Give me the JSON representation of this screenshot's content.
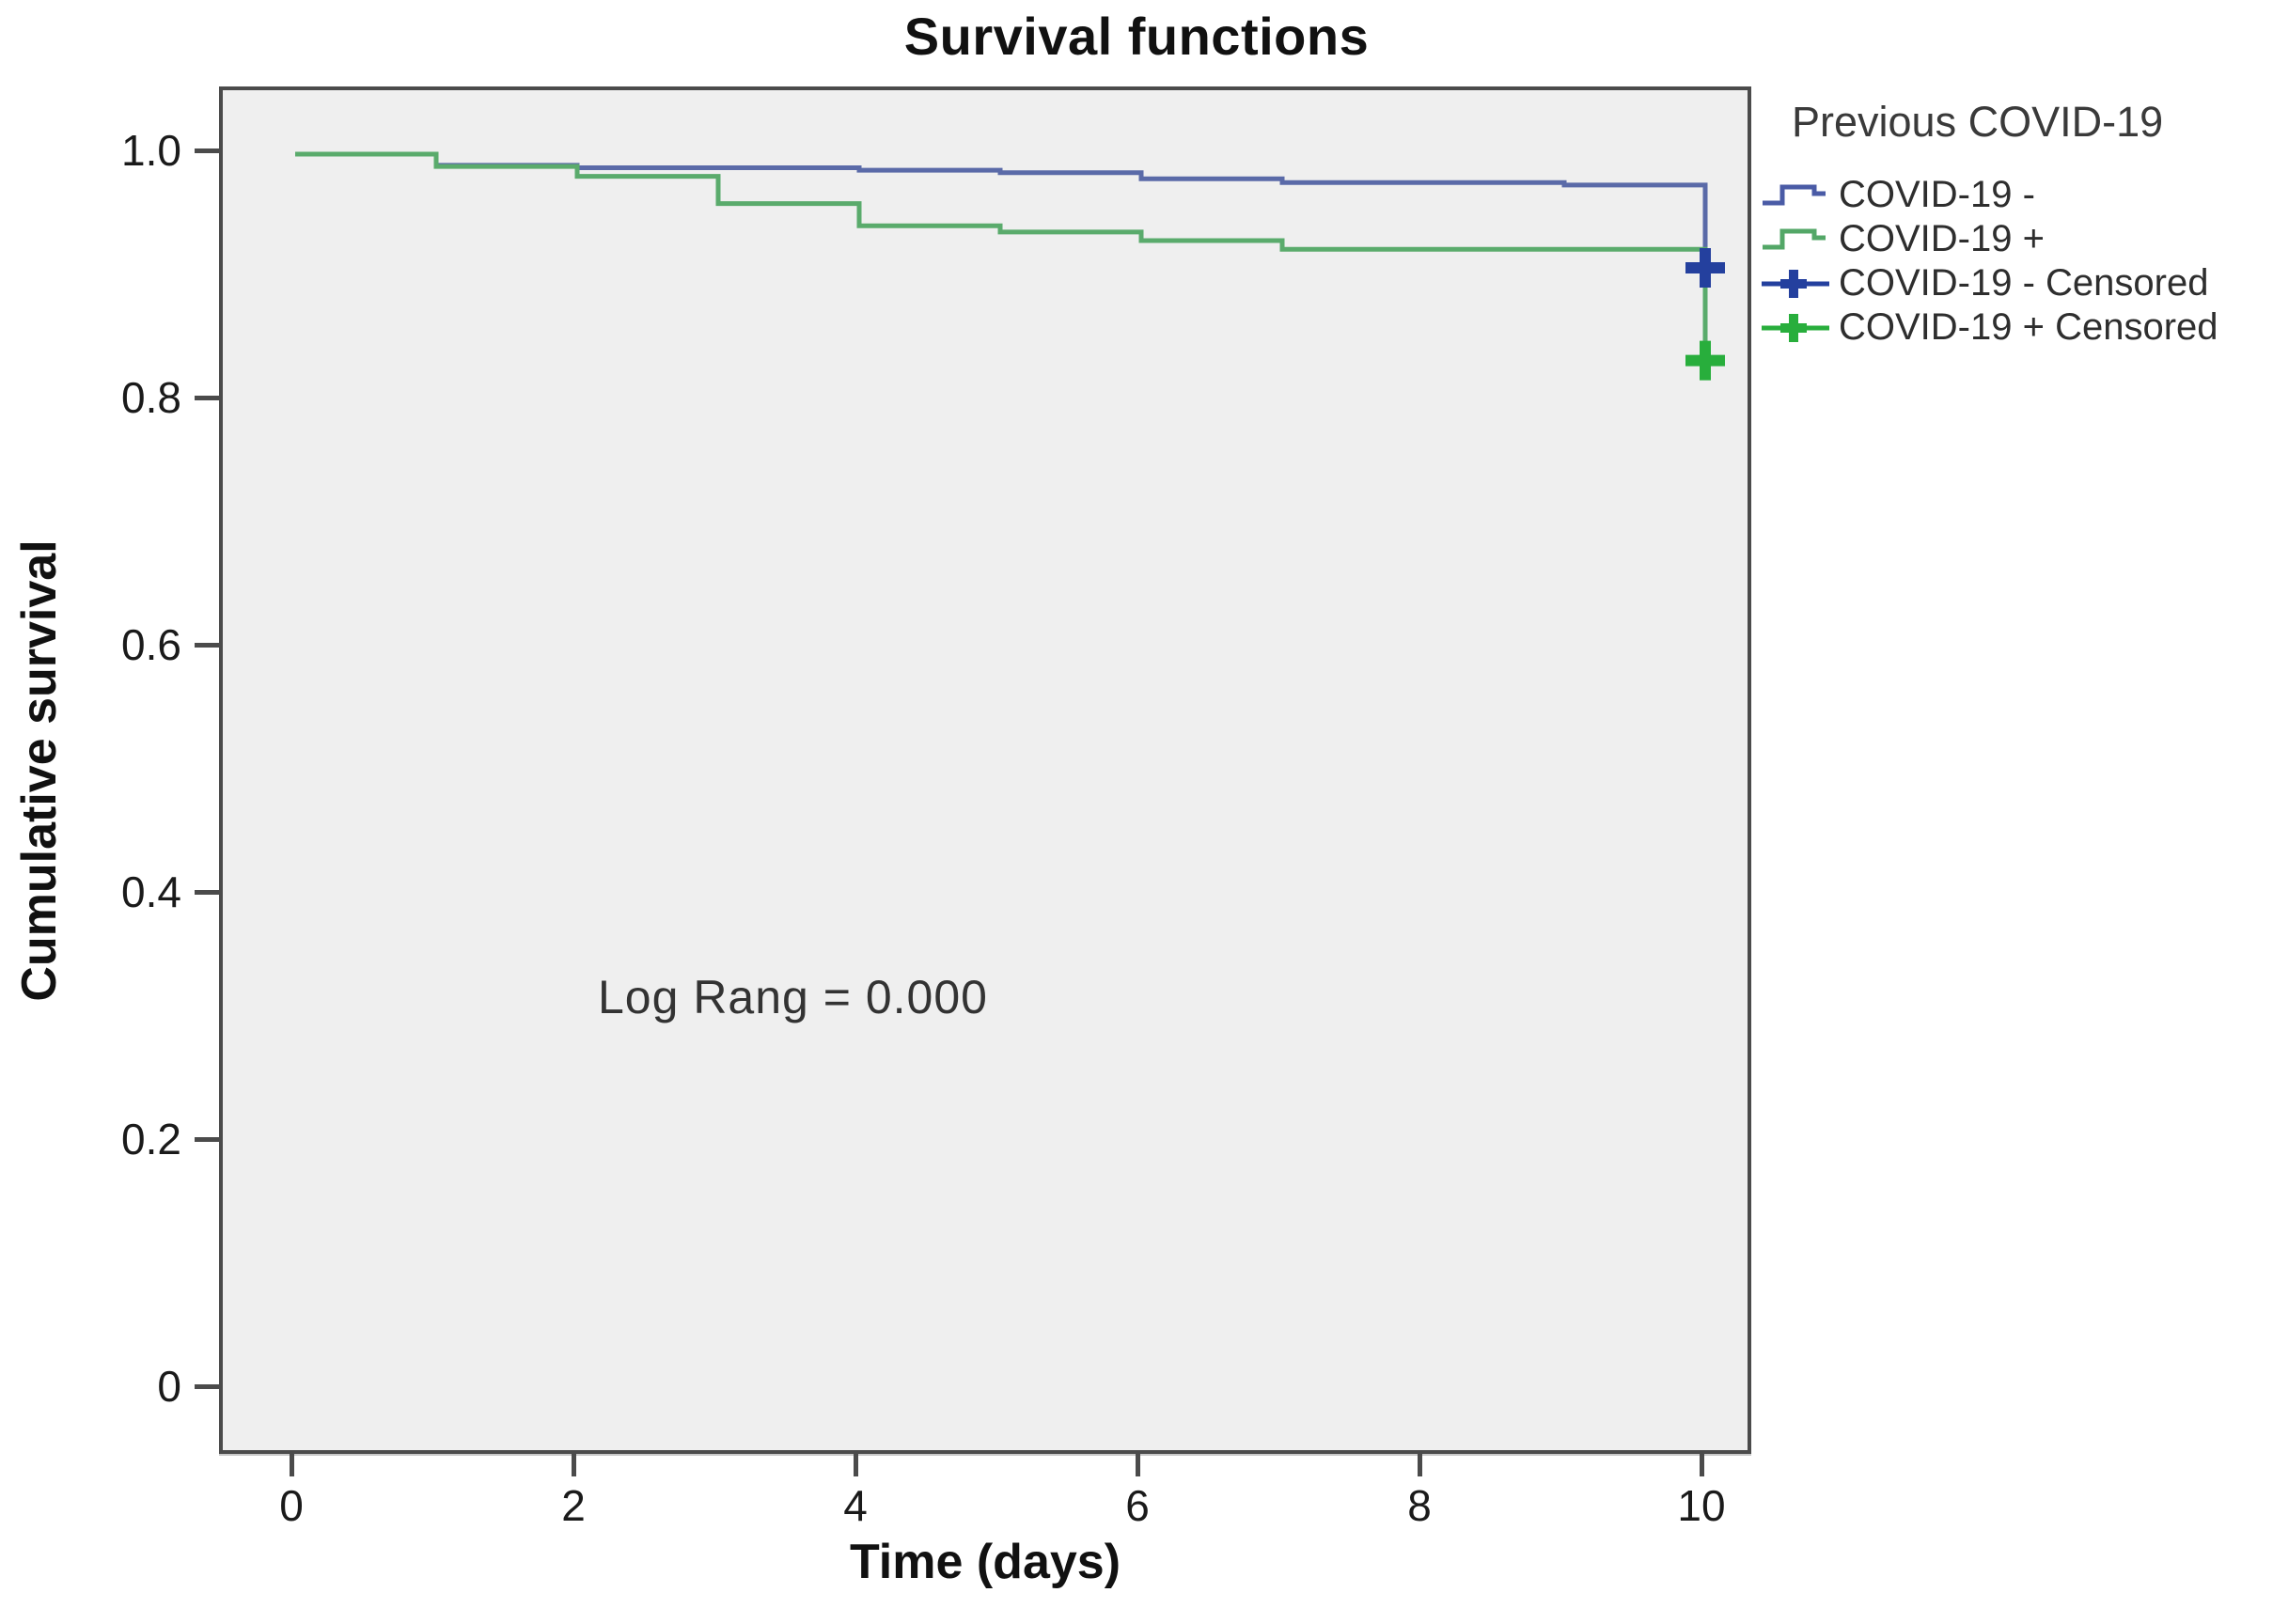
{
  "chart_data": {
    "type": "line",
    "subtype": "kaplan-meier-step-survival",
    "title": "Survival functions",
    "xlabel": "Time (days)",
    "ylabel": "Cumulative survival",
    "annotation": {
      "text": "Log Rang = 0.000",
      "x": 2.15,
      "y": 0.32
    },
    "xlim": [
      0,
      10.4
    ],
    "ylim": [
      -0.055,
      1.05
    ],
    "x_ticks": [
      0,
      2,
      4,
      6,
      8,
      10
    ],
    "y_ticks": [
      {
        "value": 1.0,
        "label": "1.0"
      },
      {
        "value": 0.8,
        "label": "0.8"
      },
      {
        "value": 0.6,
        "label": "0.6"
      },
      {
        "value": 0.4,
        "label": "0.4"
      },
      {
        "value": 0.2,
        "label": "0.2"
      },
      {
        "value": 0.0,
        "label": "0"
      }
    ],
    "grid": false,
    "plot_background": "#efefef",
    "frame_color": "#4b4b4b",
    "legend": {
      "title": "Previous COVID-19",
      "position": "right",
      "entries": [
        {
          "label": "COVID-19 -",
          "type": "step",
          "color": "#4a5ba6"
        },
        {
          "label": "COVID-19 +",
          "type": "step",
          "color": "#53a767"
        },
        {
          "label": "COVID-19 - Censored",
          "type": "plus",
          "color": "#24409e"
        },
        {
          "label": "COVID-19 + Censored",
          "type": "plus",
          "color": "#28ae3c"
        }
      ]
    },
    "series": [
      {
        "name": "COVID-19 -",
        "color": "#5a6aa8",
        "censor_color": "#24409e",
        "points": [
          [
            0,
            1.0
          ],
          [
            1,
            0.991
          ],
          [
            2,
            0.989
          ],
          [
            4,
            0.987
          ],
          [
            5,
            0.985
          ],
          [
            6,
            0.98
          ],
          [
            7,
            0.977
          ],
          [
            9,
            0.975
          ],
          [
            10,
            0.908
          ]
        ],
        "censored": [
          [
            10,
            0.908
          ]
        ]
      },
      {
        "name": "COVID-19 +",
        "color": "#5aab6c",
        "censor_color": "#28ae3c",
        "points": [
          [
            0,
            1.0
          ],
          [
            1,
            0.99
          ],
          [
            2,
            0.982
          ],
          [
            3,
            0.96
          ],
          [
            4,
            0.942
          ],
          [
            5,
            0.937
          ],
          [
            6,
            0.93
          ],
          [
            7,
            0.923
          ],
          [
            10,
            0.833
          ]
        ],
        "censored": [
          [
            10,
            0.833
          ]
        ]
      }
    ]
  }
}
